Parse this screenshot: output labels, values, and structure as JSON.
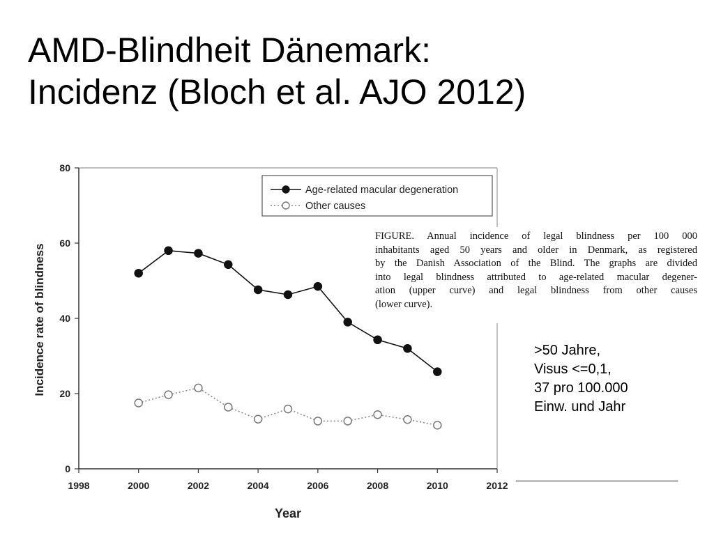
{
  "slide": {
    "title_line1": "AMD-Blindheit Dänemark:",
    "title_line2": "Incidenz (Bloch et al. AJO 2012)"
  },
  "caption": {
    "lines": [
      "FIGURE. Annual incidence of legal blindness per 100 000",
      "inhabitants aged 50 years and older in Denmark, as registered",
      "by the Danish Association of the Blind. The graphs are divided",
      "into legal blindness attributed to age-related macular degener-",
      "ation (upper curve) and legal blindness from other causes",
      "(lower curve)."
    ]
  },
  "note": {
    "lines": [
      ">50 Jahre,",
      "Visus <=0,1,",
      "37 pro 100.000",
      "Einw. und Jahr"
    ]
  },
  "chart_data": {
    "type": "line",
    "xlabel": "Year",
    "ylabel": "Incidence rate of blindness",
    "xlim": [
      1998,
      2012
    ],
    "ylim": [
      0,
      80
    ],
    "xticks": [
      1998,
      2000,
      2002,
      2004,
      2006,
      2008,
      2010,
      2012
    ],
    "yticks": [
      0,
      20,
      40,
      60,
      80
    ],
    "grid": false,
    "legend_position": "top-right",
    "series": [
      {
        "name": "Age-related macular degeneration",
        "marker": "filled-circle",
        "line_style": "solid",
        "color": "#000000",
        "x": [
          2000,
          2001,
          2002,
          2003,
          2004,
          2005,
          2006,
          2007,
          2008,
          2009,
          2010
        ],
        "y": [
          52,
          58,
          57.3,
          54.3,
          47.6,
          46.3,
          48.5,
          39,
          34.3,
          32,
          25.8
        ]
      },
      {
        "name": "Other causes",
        "marker": "open-circle",
        "line_style": "dotted",
        "color": "#888888",
        "x": [
          2000,
          2001,
          2002,
          2003,
          2004,
          2005,
          2006,
          2007,
          2008,
          2009,
          2010
        ],
        "y": [
          17.5,
          19.7,
          21.5,
          16.4,
          13.2,
          15.9,
          12.7,
          12.7,
          14.4,
          13.1,
          11.6
        ]
      }
    ]
  }
}
